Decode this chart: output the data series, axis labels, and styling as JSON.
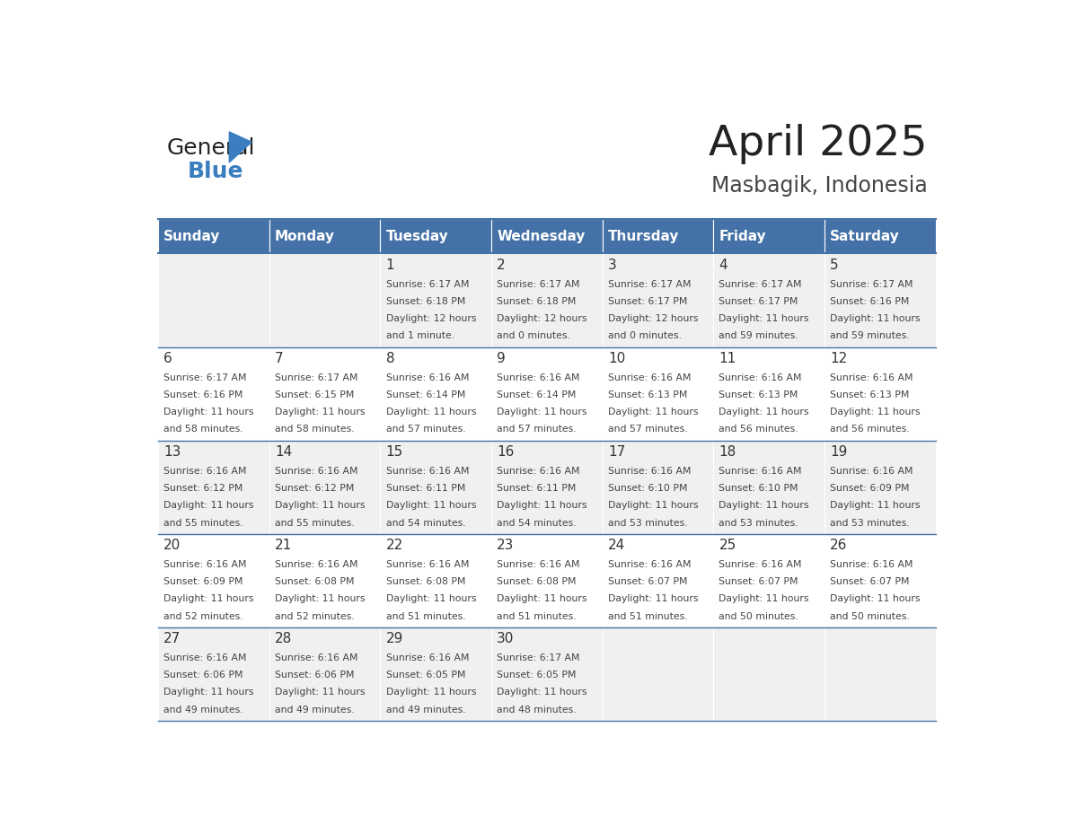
{
  "title": "April 2025",
  "subtitle": "Masbagik, Indonesia",
  "days_of_week": [
    "Sunday",
    "Monday",
    "Tuesday",
    "Wednesday",
    "Thursday",
    "Friday",
    "Saturday"
  ],
  "header_bg": "#4472a8",
  "header_text": "#ffffff",
  "row_bg_odd": "#f0f0f0",
  "row_bg_even": "#ffffff",
  "border_color": "#4472a8",
  "logo_general_color": "#222222",
  "logo_blue_color": "#3a7ebf",
  "calendar_data": [
    [
      null,
      null,
      {
        "day": 1,
        "sunrise": "6:17 AM",
        "sunset": "6:18 PM",
        "daylight": "12 hours and 1 minute."
      },
      {
        "day": 2,
        "sunrise": "6:17 AM",
        "sunset": "6:18 PM",
        "daylight": "12 hours and 0 minutes."
      },
      {
        "day": 3,
        "sunrise": "6:17 AM",
        "sunset": "6:17 PM",
        "daylight": "12 hours and 0 minutes."
      },
      {
        "day": 4,
        "sunrise": "6:17 AM",
        "sunset": "6:17 PM",
        "daylight": "11 hours and 59 minutes."
      },
      {
        "day": 5,
        "sunrise": "6:17 AM",
        "sunset": "6:16 PM",
        "daylight": "11 hours and 59 minutes."
      }
    ],
    [
      {
        "day": 6,
        "sunrise": "6:17 AM",
        "sunset": "6:16 PM",
        "daylight": "11 hours and 58 minutes."
      },
      {
        "day": 7,
        "sunrise": "6:17 AM",
        "sunset": "6:15 PM",
        "daylight": "11 hours and 58 minutes."
      },
      {
        "day": 8,
        "sunrise": "6:16 AM",
        "sunset": "6:14 PM",
        "daylight": "11 hours and 57 minutes."
      },
      {
        "day": 9,
        "sunrise": "6:16 AM",
        "sunset": "6:14 PM",
        "daylight": "11 hours and 57 minutes."
      },
      {
        "day": 10,
        "sunrise": "6:16 AM",
        "sunset": "6:13 PM",
        "daylight": "11 hours and 57 minutes."
      },
      {
        "day": 11,
        "sunrise": "6:16 AM",
        "sunset": "6:13 PM",
        "daylight": "11 hours and 56 minutes."
      },
      {
        "day": 12,
        "sunrise": "6:16 AM",
        "sunset": "6:13 PM",
        "daylight": "11 hours and 56 minutes."
      }
    ],
    [
      {
        "day": 13,
        "sunrise": "6:16 AM",
        "sunset": "6:12 PM",
        "daylight": "11 hours and 55 minutes."
      },
      {
        "day": 14,
        "sunrise": "6:16 AM",
        "sunset": "6:12 PM",
        "daylight": "11 hours and 55 minutes."
      },
      {
        "day": 15,
        "sunrise": "6:16 AM",
        "sunset": "6:11 PM",
        "daylight": "11 hours and 54 minutes."
      },
      {
        "day": 16,
        "sunrise": "6:16 AM",
        "sunset": "6:11 PM",
        "daylight": "11 hours and 54 minutes."
      },
      {
        "day": 17,
        "sunrise": "6:16 AM",
        "sunset": "6:10 PM",
        "daylight": "11 hours and 53 minutes."
      },
      {
        "day": 18,
        "sunrise": "6:16 AM",
        "sunset": "6:10 PM",
        "daylight": "11 hours and 53 minutes."
      },
      {
        "day": 19,
        "sunrise": "6:16 AM",
        "sunset": "6:09 PM",
        "daylight": "11 hours and 53 minutes."
      }
    ],
    [
      {
        "day": 20,
        "sunrise": "6:16 AM",
        "sunset": "6:09 PM",
        "daylight": "11 hours and 52 minutes."
      },
      {
        "day": 21,
        "sunrise": "6:16 AM",
        "sunset": "6:08 PM",
        "daylight": "11 hours and 52 minutes."
      },
      {
        "day": 22,
        "sunrise": "6:16 AM",
        "sunset": "6:08 PM",
        "daylight": "11 hours and 51 minutes."
      },
      {
        "day": 23,
        "sunrise": "6:16 AM",
        "sunset": "6:08 PM",
        "daylight": "11 hours and 51 minutes."
      },
      {
        "day": 24,
        "sunrise": "6:16 AM",
        "sunset": "6:07 PM",
        "daylight": "11 hours and 51 minutes."
      },
      {
        "day": 25,
        "sunrise": "6:16 AM",
        "sunset": "6:07 PM",
        "daylight": "11 hours and 50 minutes."
      },
      {
        "day": 26,
        "sunrise": "6:16 AM",
        "sunset": "6:07 PM",
        "daylight": "11 hours and 50 minutes."
      }
    ],
    [
      {
        "day": 27,
        "sunrise": "6:16 AM",
        "sunset": "6:06 PM",
        "daylight": "11 hours and 49 minutes."
      },
      {
        "day": 28,
        "sunrise": "6:16 AM",
        "sunset": "6:06 PM",
        "daylight": "11 hours and 49 minutes."
      },
      {
        "day": 29,
        "sunrise": "6:16 AM",
        "sunset": "6:05 PM",
        "daylight": "11 hours and 49 minutes."
      },
      {
        "day": 30,
        "sunrise": "6:17 AM",
        "sunset": "6:05 PM",
        "daylight": "11 hours and 48 minutes."
      },
      null,
      null,
      null
    ]
  ]
}
